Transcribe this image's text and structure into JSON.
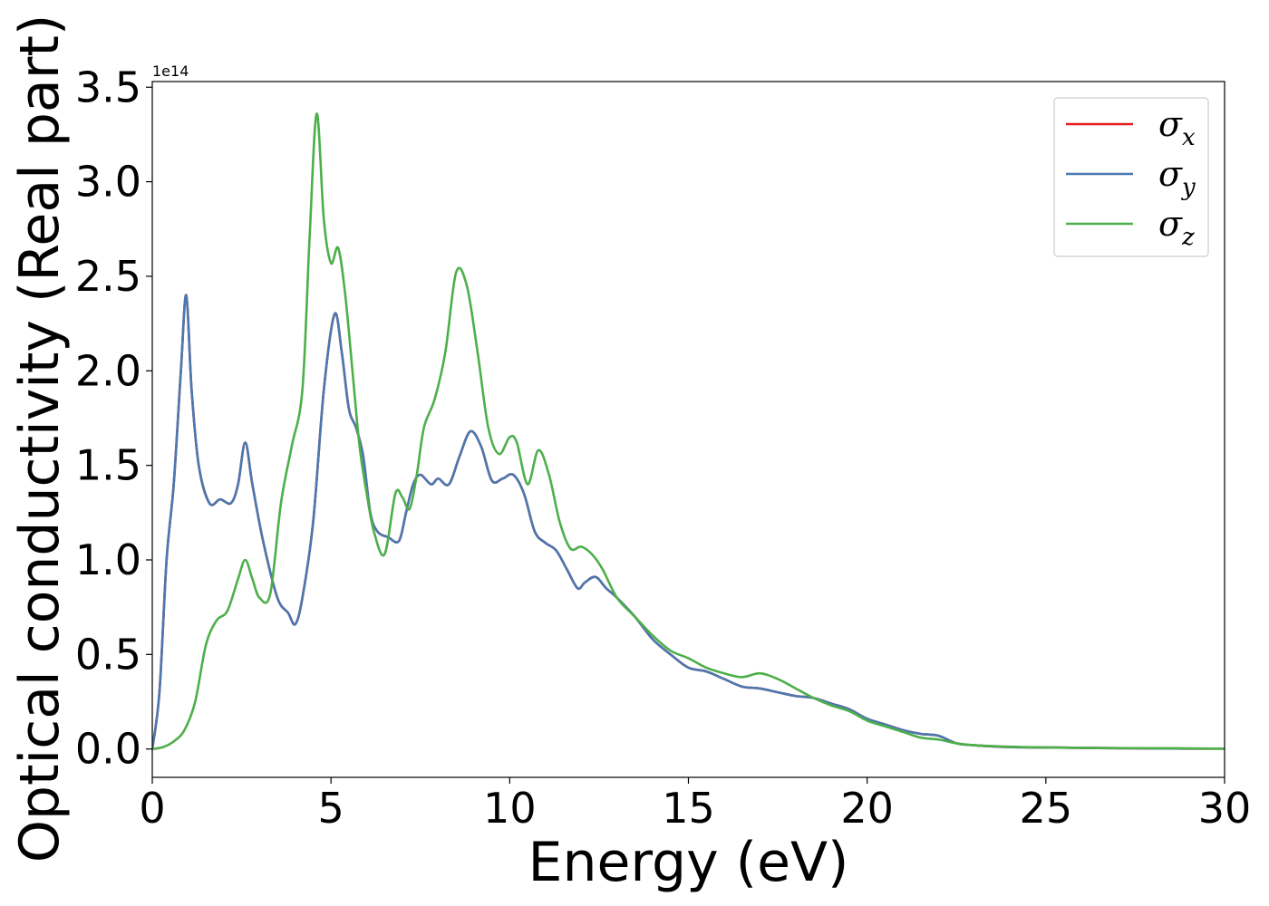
{
  "chart_data": {
    "type": "line",
    "xlabel": "Energy (eV)",
    "ylabel": "Optical conductivity (Real part)",
    "y_offset_label": "1e14",
    "y_multiplier": 100000000000000.0,
    "xlim": [
      0,
      30
    ],
    "ylim": [
      -0.15,
      3.53
    ],
    "x_ticks": [
      0,
      5,
      10,
      15,
      20,
      25,
      30
    ],
    "x_tick_labels": [
      "0",
      "5",
      "10",
      "15",
      "20",
      "25",
      "30"
    ],
    "y_ticks": [
      0.0,
      0.5,
      1.0,
      1.5,
      2.0,
      2.5,
      3.0,
      3.5
    ],
    "y_tick_labels": [
      "0.0",
      "0.5",
      "1.0",
      "1.5",
      "2.0",
      "2.5",
      "3.0",
      "3.5"
    ],
    "grid": false,
    "legend_position": "top-right",
    "series": [
      {
        "name": "σx",
        "legend_base": "σ",
        "legend_sub": "x",
        "color": "#e41a1c",
        "x": [
          0,
          0.2,
          0.4,
          0.6,
          0.8,
          0.95,
          1.1,
          1.3,
          1.6,
          1.9,
          2.2,
          2.4,
          2.6,
          2.8,
          3.1,
          3.5,
          3.8,
          4.0,
          4.2,
          4.5,
          4.8,
          5.1,
          5.3,
          5.5,
          5.7,
          5.9,
          6.1,
          6.3,
          6.6,
          6.9,
          7.1,
          7.3,
          7.5,
          7.8,
          8.0,
          8.3,
          8.6,
          8.9,
          9.2,
          9.5,
          9.8,
          10.1,
          10.4,
          10.7,
          11.0,
          11.3,
          11.6,
          11.9,
          12.1,
          12.4,
          12.7,
          13.0,
          13.5,
          14.0,
          14.5,
          15.0,
          15.5,
          16.0,
          16.5,
          17.0,
          17.5,
          18.0,
          18.5,
          19.0,
          19.5,
          20.0,
          20.5,
          21.0,
          21.5,
          22.0,
          22.5,
          23.0,
          24.0,
          25.0,
          26.0,
          27.0,
          28.0,
          29.0,
          30.0
        ],
        "values": [
          0.0,
          0.3,
          1.0,
          1.4,
          2.0,
          2.4,
          1.9,
          1.5,
          1.3,
          1.32,
          1.3,
          1.4,
          1.62,
          1.4,
          1.1,
          0.8,
          0.72,
          0.66,
          0.8,
          1.2,
          1.9,
          2.3,
          2.1,
          1.8,
          1.7,
          1.55,
          1.25,
          1.15,
          1.12,
          1.1,
          1.25,
          1.4,
          1.45,
          1.4,
          1.43,
          1.4,
          1.55,
          1.68,
          1.6,
          1.42,
          1.43,
          1.45,
          1.35,
          1.15,
          1.09,
          1.05,
          0.95,
          0.85,
          0.88,
          0.91,
          0.85,
          0.8,
          0.7,
          0.58,
          0.5,
          0.43,
          0.41,
          0.37,
          0.33,
          0.32,
          0.3,
          0.28,
          0.27,
          0.24,
          0.21,
          0.16,
          0.13,
          0.1,
          0.08,
          0.07,
          0.03,
          0.02,
          0.01,
          0.008,
          0.006,
          0.004,
          0.003,
          0.002,
          0.002
        ]
      },
      {
        "name": "σy",
        "legend_base": "σ",
        "legend_sub": "y",
        "color": "#4a78b0",
        "x": [
          0,
          0.2,
          0.4,
          0.6,
          0.8,
          0.95,
          1.1,
          1.3,
          1.6,
          1.9,
          2.2,
          2.4,
          2.6,
          2.8,
          3.1,
          3.5,
          3.8,
          4.0,
          4.2,
          4.5,
          4.8,
          5.1,
          5.3,
          5.5,
          5.7,
          5.9,
          6.1,
          6.3,
          6.6,
          6.9,
          7.1,
          7.3,
          7.5,
          7.8,
          8.0,
          8.3,
          8.6,
          8.9,
          9.2,
          9.5,
          9.8,
          10.1,
          10.4,
          10.7,
          11.0,
          11.3,
          11.6,
          11.9,
          12.1,
          12.4,
          12.7,
          13.0,
          13.5,
          14.0,
          14.5,
          15.0,
          15.5,
          16.0,
          16.5,
          17.0,
          17.5,
          18.0,
          18.5,
          19.0,
          19.5,
          20.0,
          20.5,
          21.0,
          21.5,
          22.0,
          22.5,
          23.0,
          24.0,
          25.0,
          26.0,
          27.0,
          28.0,
          29.0,
          30.0
        ],
        "values": [
          0.0,
          0.3,
          1.0,
          1.4,
          2.0,
          2.4,
          1.9,
          1.5,
          1.3,
          1.32,
          1.3,
          1.4,
          1.62,
          1.4,
          1.1,
          0.8,
          0.72,
          0.66,
          0.8,
          1.2,
          1.9,
          2.3,
          2.1,
          1.8,
          1.7,
          1.55,
          1.25,
          1.15,
          1.12,
          1.1,
          1.25,
          1.4,
          1.45,
          1.4,
          1.43,
          1.4,
          1.55,
          1.68,
          1.6,
          1.42,
          1.43,
          1.45,
          1.35,
          1.15,
          1.09,
          1.05,
          0.95,
          0.85,
          0.88,
          0.91,
          0.85,
          0.8,
          0.7,
          0.58,
          0.5,
          0.43,
          0.41,
          0.37,
          0.33,
          0.32,
          0.3,
          0.28,
          0.27,
          0.24,
          0.21,
          0.16,
          0.13,
          0.1,
          0.08,
          0.07,
          0.03,
          0.02,
          0.01,
          0.008,
          0.006,
          0.004,
          0.003,
          0.002,
          0.002
        ]
      },
      {
        "name": "σz",
        "legend_base": "σ",
        "legend_sub": "z",
        "color": "#4daf4a",
        "x": [
          0,
          0.3,
          0.6,
          0.9,
          1.2,
          1.5,
          1.8,
          2.1,
          2.4,
          2.6,
          2.8,
          3.0,
          3.3,
          3.6,
          3.9,
          4.2,
          4.4,
          4.6,
          4.8,
          5.0,
          5.2,
          5.4,
          5.6,
          5.8,
          6.0,
          6.2,
          6.5,
          6.8,
          7.0,
          7.2,
          7.4,
          7.6,
          7.9,
          8.2,
          8.5,
          8.8,
          9.1,
          9.4,
          9.7,
          10.0,
          10.2,
          10.5,
          10.8,
          11.1,
          11.4,
          11.7,
          12.0,
          12.3,
          12.6,
          13.0,
          13.5,
          14.0,
          14.5,
          15.0,
          15.5,
          16.0,
          16.5,
          17.0,
          17.5,
          18.0,
          18.5,
          19.0,
          19.5,
          20.0,
          20.5,
          21.0,
          21.5,
          22.0,
          22.5,
          23.0,
          24.0,
          25.0,
          26.0,
          27.0,
          28.0,
          29.0,
          30.0
        ],
        "values": [
          0.0,
          0.01,
          0.04,
          0.1,
          0.25,
          0.55,
          0.68,
          0.73,
          0.9,
          1.0,
          0.9,
          0.8,
          0.82,
          1.3,
          1.6,
          1.9,
          2.7,
          3.36,
          2.8,
          2.57,
          2.65,
          2.4,
          2.0,
          1.6,
          1.35,
          1.15,
          1.03,
          1.35,
          1.33,
          1.27,
          1.45,
          1.7,
          1.85,
          2.1,
          2.52,
          2.45,
          2.1,
          1.7,
          1.56,
          1.65,
          1.62,
          1.4,
          1.58,
          1.45,
          1.2,
          1.06,
          1.07,
          1.03,
          0.95,
          0.8,
          0.7,
          0.6,
          0.52,
          0.48,
          0.43,
          0.4,
          0.38,
          0.4,
          0.37,
          0.32,
          0.27,
          0.23,
          0.2,
          0.15,
          0.12,
          0.09,
          0.06,
          0.05,
          0.03,
          0.02,
          0.012,
          0.008,
          0.006,
          0.005,
          0.004,
          0.003,
          0.002
        ]
      }
    ]
  }
}
